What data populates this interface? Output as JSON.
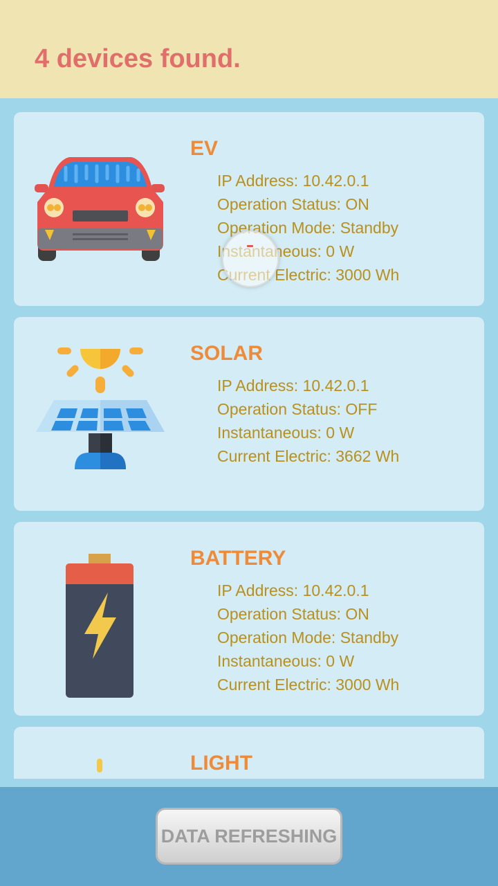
{
  "header": {
    "title": "4 devices found."
  },
  "devices": [
    {
      "name": "EV",
      "icon": "car-icon",
      "lines": [
        "IP Address: 10.42.0.1",
        "Operation Status: ON",
        "Operation Mode: Standby",
        "Instantaneous: 0 W",
        "Current Electric: 3000 Wh"
      ]
    },
    {
      "name": "SOLAR",
      "icon": "solar-panel-icon",
      "lines": [
        "IP Address: 10.42.0.1",
        "Operation Status: OFF",
        "Instantaneous: 0 W",
        "Current Electric: 3662 Wh"
      ]
    },
    {
      "name": "BATTERY",
      "icon": "battery-icon",
      "lines": [
        "IP Address: 10.42.0.1",
        "Operation Status: ON",
        "Operation Mode: Standby",
        "Instantaneous: 0 W",
        "Current Electric: 3000 Wh"
      ]
    },
    {
      "name": "LIGHT",
      "icon": "light-bulb-icon",
      "lines": []
    }
  ],
  "footer": {
    "button_label": "DATA REFRESHING"
  },
  "colors": {
    "header_bg": "#f0e4b2",
    "title_text": "#e06e6a",
    "device_name": "#ee8a38",
    "info_text": "#b9901c",
    "card_bg": "#d3ecf5",
    "list_bg": "#9fd6ea",
    "footer_bg": "#62a5cd"
  }
}
